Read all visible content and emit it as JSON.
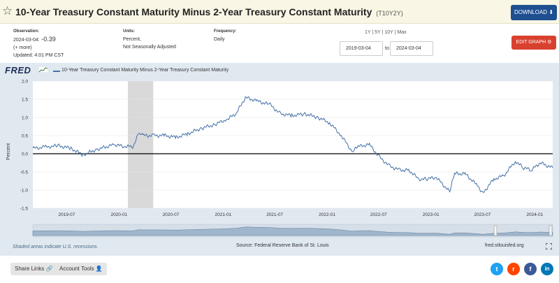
{
  "header": {
    "title": "10-Year Treasury Constant Maturity Minus 2-Year Treasury Constant Maturity",
    "series_id": "(T10Y2Y)",
    "download_label": "DOWNLOAD",
    "download_icon": "download-arrow-icon",
    "star_icon": "star-outline-icon"
  },
  "meta": {
    "observation_label": "Observation:",
    "observation_date": "2024-03-04:",
    "observation_value": "-0.39",
    "more_label": "(+ more)",
    "updated": "Updated: 4:01 PM CST",
    "units_label": "Units:",
    "units_line1": "Percent,",
    "units_line2": "Not Seasonally Adjusted",
    "frequency_label": "Frequency:",
    "frequency_value": "Daily"
  },
  "controls": {
    "range_links": [
      "1Y",
      "5Y",
      "10Y",
      "Max"
    ],
    "start_date": "2019-03-04",
    "to_label": "to",
    "end_date": "2024-03-04",
    "edit_graph_label": "EDIT GRAPH",
    "edit_icon": "gear-icon"
  },
  "graph": {
    "logo": "FRED",
    "legend_label": "10-Year Treasury Constant Maturity Minus 2-Year Treasury Constant Maturity",
    "line_color": "#4572a7",
    "recession_color": "#d9d9d9",
    "shaded_note": "Shaded areas indicate U.S. recessions.",
    "source": "Source: Federal Reserve Bank of St. Louis",
    "url": "fred.stlouisfed.org"
  },
  "chart_data": {
    "type": "line",
    "ylabel": "Percent",
    "ylim": [
      -1.5,
      2.0
    ],
    "yticks": [
      "2.0",
      "1.5",
      "1.0",
      "0.5",
      "0.0",
      "-0.5",
      "-1.0",
      "-1.5"
    ],
    "xlim": [
      "2019-03-04",
      "2024-03-04"
    ],
    "xticks": [
      "2019-07",
      "2020-01",
      "2020-07",
      "2021-01",
      "2021-07",
      "2022-01",
      "2022-07",
      "2023-01",
      "2023-07",
      "2024-01"
    ],
    "recessions": [
      {
        "start": "2020-02-01",
        "end": "2020-04-30"
      }
    ],
    "zero_line": 0,
    "series": [
      {
        "x": [
          "2019-03-04",
          "2019-04-15",
          "2019-06-01",
          "2019-07-15",
          "2019-08-27",
          "2019-10-15",
          "2019-12-15",
          "2020-01-20",
          "2020-02-20",
          "2020-03-10",
          "2020-03-25",
          "2020-05-01",
          "2020-06-10",
          "2020-07-20",
          "2020-08-30",
          "2020-10-15",
          "2020-12-01",
          "2021-01-15",
          "2021-02-15",
          "2021-03-20",
          "2021-04-30",
          "2021-06-15",
          "2021-07-20",
          "2021-08-30",
          "2021-10-15",
          "2021-11-30",
          "2022-01-10",
          "2022-02-20",
          "2022-03-31",
          "2022-04-20",
          "2022-05-30",
          "2022-07-05",
          "2022-08-10",
          "2022-09-15",
          "2022-10-15",
          "2022-11-20",
          "2022-12-15",
          "2023-01-20",
          "2023-03-08",
          "2023-03-25",
          "2023-05-01",
          "2023-06-10",
          "2023-07-03",
          "2023-08-10",
          "2023-09-15",
          "2023-10-25",
          "2023-11-20",
          "2023-12-20",
          "2024-01-20",
          "2024-03-04"
        ],
        "y": [
          0.15,
          0.18,
          0.22,
          0.15,
          -0.03,
          0.12,
          0.25,
          0.2,
          0.2,
          0.55,
          0.5,
          0.5,
          0.5,
          0.45,
          0.55,
          0.7,
          0.8,
          0.95,
          1.1,
          1.55,
          1.45,
          1.35,
          1.1,
          1.05,
          1.1,
          1.0,
          0.85,
          0.5,
          0.05,
          0.2,
          0.25,
          -0.1,
          -0.35,
          -0.45,
          -0.45,
          -0.7,
          -0.7,
          -0.65,
          -1.05,
          -0.55,
          -0.55,
          -0.85,
          -1.08,
          -0.7,
          -0.6,
          -0.2,
          -0.38,
          -0.45,
          -0.25,
          -0.39
        ]
      }
    ]
  },
  "footer": {
    "share_links": "Share Links",
    "share_icon": "link-icon",
    "account_tools": "Account Tools",
    "account_icon": "user-icon",
    "social": [
      {
        "name": "twitter-icon",
        "glyph": "t",
        "color": "#1da1f2"
      },
      {
        "name": "reddit-icon",
        "glyph": "r",
        "color": "#ff4500"
      },
      {
        "name": "facebook-icon",
        "glyph": "f",
        "color": "#3b5998"
      },
      {
        "name": "linkedin-icon",
        "glyph": "in",
        "color": "#0077b5"
      }
    ]
  }
}
